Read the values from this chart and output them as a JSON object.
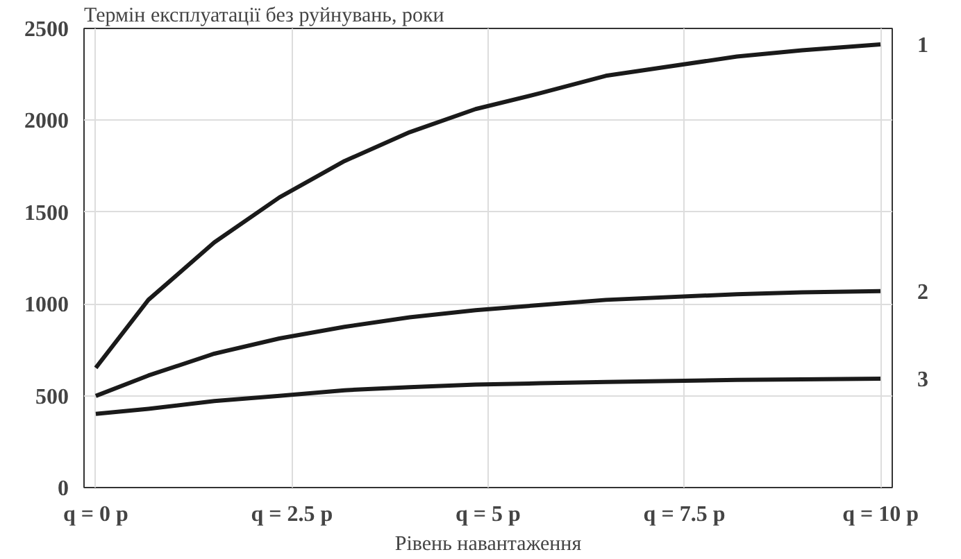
{
  "chart_data": {
    "type": "line",
    "title": "Термін експлуатації без руйнувань, роки",
    "xlabel": "Рівень навантаження",
    "x": [
      0,
      0.67,
      1.51,
      2.34,
      3.17,
      4.0,
      4.84,
      5.67,
      6.5,
      8.17,
      9.0,
      10
    ],
    "xlim": [
      -0.15,
      10.15
    ],
    "xticks": [
      {
        "value": 0,
        "label": "q = 0 p"
      },
      {
        "value": 2.5,
        "label": "q = 2.5 p"
      },
      {
        "value": 5,
        "label": "q = 5 p"
      },
      {
        "value": 7.5,
        "label": "q = 7.5 p"
      },
      {
        "value": 10,
        "label": "q = 10 p"
      }
    ],
    "ylim": [
      0,
      2500
    ],
    "yticks": [
      0,
      500,
      1000,
      1500,
      2000,
      2500
    ],
    "series": [
      {
        "name": "1",
        "color": "#1a1a1a",
        "values": [
          652,
          1022,
          1335,
          1580,
          1778,
          1935,
          2061,
          2148,
          2242,
          2347,
          2381,
          2413
        ]
      },
      {
        "name": "2",
        "color": "#1a1a1a",
        "values": [
          499,
          610,
          729,
          812,
          875,
          927,
          966,
          994,
          1022,
          1053,
          1063,
          1070
        ]
      },
      {
        "name": "3",
        "color": "#1a1a1a",
        "values": [
          401,
          429,
          471,
          499,
          530,
          547,
          561,
          568,
          575,
          586,
          589,
          593
        ]
      }
    ],
    "grid": true,
    "line_style": "solid",
    "marker": "none"
  }
}
